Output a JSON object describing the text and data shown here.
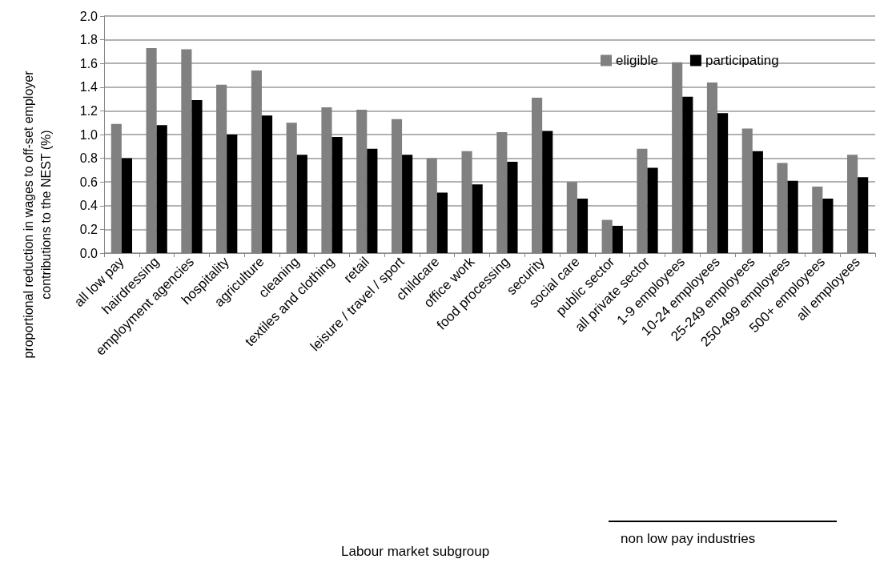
{
  "chart_data": {
    "type": "bar",
    "ylabel": "proportional reduction in wages to off-set employer\ncontributions to the NEST (%)",
    "categories": [
      "all low pay",
      "hairdressing",
      "employment agencies",
      "hospitality",
      "agriculture",
      "cleaning",
      "textiles and clothing",
      "retail",
      "leisure / travel / sport",
      "childcare",
      "office work",
      "food processing",
      "security",
      "social care",
      "public sector",
      "all private sector",
      "1-9 employees",
      "10-24 employees",
      "25-249 employees",
      "250-499 employees",
      "500+ employees",
      "all employees"
    ],
    "series": [
      {
        "name": "eligible",
        "color": "#808080",
        "values": [
          1.09,
          1.73,
          1.72,
          1.42,
          1.54,
          1.1,
          1.23,
          1.21,
          1.13,
          0.8,
          0.86,
          1.02,
          1.31,
          0.6,
          0.28,
          0.88,
          1.61,
          1.44,
          1.05,
          0.76,
          0.56,
          0.83
        ]
      },
      {
        "name": "participating",
        "color": "#000000",
        "values": [
          0.8,
          1.08,
          1.29,
          1.0,
          1.16,
          0.83,
          0.98,
          0.88,
          0.83,
          0.51,
          0.58,
          0.77,
          1.03,
          0.46,
          0.23,
          0.72,
          1.32,
          1.18,
          0.86,
          0.61,
          0.46,
          0.64
        ]
      }
    ],
    "ylim": [
      0,
      2
    ],
    "yticks": [
      {
        "value": 0,
        "label": "0.0"
      },
      {
        "value": 0.2,
        "label": "0.2"
      },
      {
        "value": 0.4,
        "label": "0.4"
      },
      {
        "value": 0.6,
        "label": "0.6"
      },
      {
        "value": 0.8,
        "label": "0.8"
      },
      {
        "value": 1,
        "label": "1.0"
      },
      {
        "value": 1.2,
        "label": "1.2"
      },
      {
        "value": 1.4,
        "label": "1.4"
      },
      {
        "value": 1.6,
        "label": "1.6"
      },
      {
        "value": 1.8,
        "label": "1.8"
      },
      {
        "value": 2,
        "label": "2.0"
      }
    ],
    "annotations": [
      "Labour market subgroup",
      "non low pay industries"
    ],
    "grid": "y",
    "legend": "top right"
  }
}
